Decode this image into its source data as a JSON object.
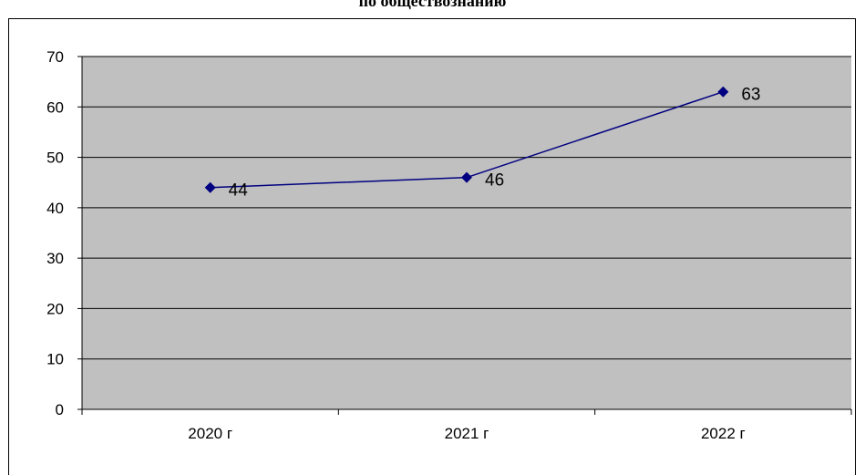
{
  "chart_data": {
    "type": "line",
    "title": "по обществознанию",
    "categories": [
      "2020 г",
      "2021 г",
      "2022 г"
    ],
    "series": [
      {
        "values": [
          44,
          46,
          63
        ]
      }
    ],
    "data_labels": [
      "44",
      "46",
      "63"
    ],
    "ylim": [
      0,
      70
    ],
    "yticks": [
      0,
      10,
      20,
      30,
      40,
      50,
      60,
      70
    ],
    "grid": true,
    "legend": "none",
    "xlabel": "",
    "ylabel": "",
    "colors": {
      "plot_background": "#c0c0c0",
      "line": "#000080",
      "marker": "#000080",
      "gridline": "#000000"
    }
  }
}
